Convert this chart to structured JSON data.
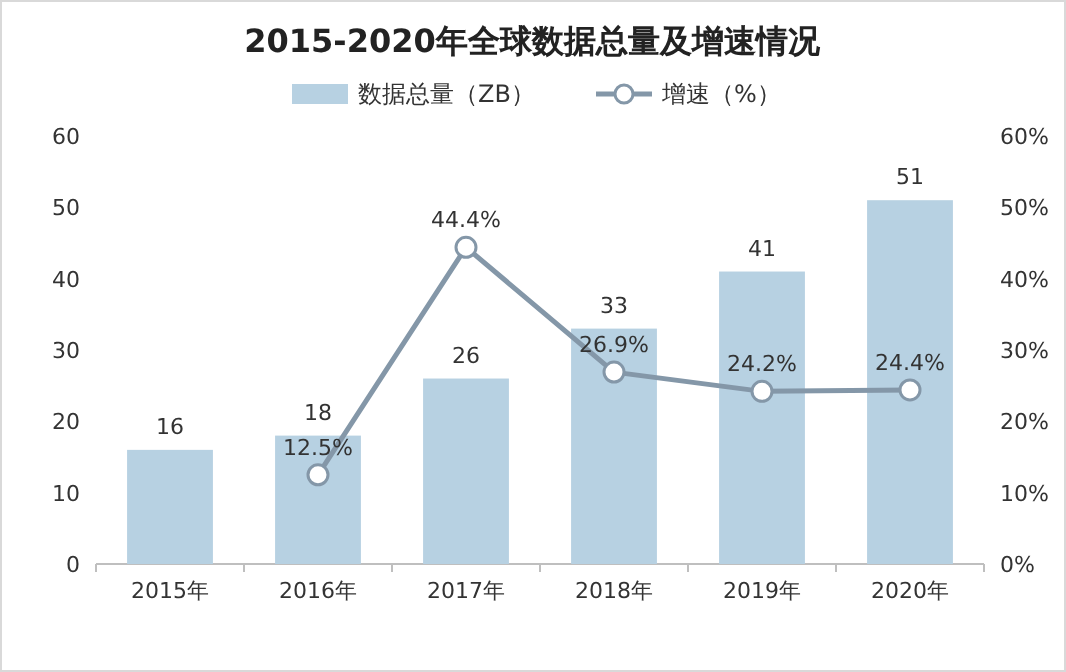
{
  "chart_data": {
    "type": "bar",
    "title": "2015-2020年全球数据总量及增速情况",
    "categories": [
      "2015年",
      "2016年",
      "2017年",
      "2018年",
      "2019年",
      "2020年"
    ],
    "series": [
      {
        "name": "数据总量（ZB）",
        "color": "#b7d1e2",
        "values": [
          16,
          18,
          26,
          33,
          41,
          51
        ],
        "value_labels": [
          "16",
          "18",
          "26",
          "33",
          "41",
          "51"
        ]
      },
      {
        "name": "增速（%）",
        "type": "line",
        "axis": "y2",
        "color": "#8497a8",
        "marker": "circle",
        "values": [
          null,
          12.5,
          44.4,
          26.9,
          24.2,
          24.4
        ],
        "value_labels": [
          null,
          "12.5%",
          "44.4%",
          "26.9%",
          "24.2%",
          "24.4%"
        ]
      }
    ],
    "ylim": [
      0,
      60
    ],
    "yticks": [
      0,
      10,
      20,
      30,
      40,
      50,
      60
    ],
    "y2lim": [
      0,
      60
    ],
    "y2ticks": [
      {
        "value": 0,
        "label": "0%"
      },
      {
        "value": 10,
        "label": "10%"
      },
      {
        "value": 20,
        "label": "20%"
      },
      {
        "value": 30,
        "label": "30%"
      },
      {
        "value": 40,
        "label": "40%"
      },
      {
        "value": 50,
        "label": "50%"
      },
      {
        "value": 60,
        "label": "60%"
      }
    ],
    "legend": "top"
  }
}
